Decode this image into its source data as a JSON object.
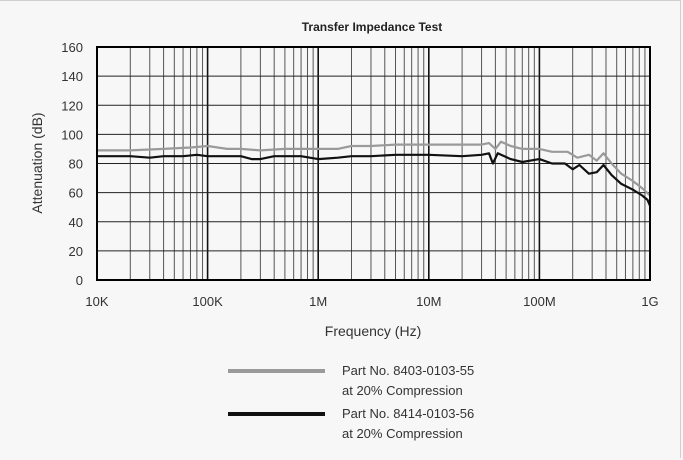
{
  "chart_data": {
    "type": "line",
    "title": "Transfer Impedance Test",
    "xlabel": "Frequency (Hz)",
    "ylabel": "Attenuation (dB)",
    "xscale": "log",
    "xlim": [
      10000,
      1000000000
    ],
    "ylim": [
      0,
      160
    ],
    "grid": true,
    "x_ticks": [
      {
        "value": 10000,
        "label": "10K"
      },
      {
        "value": 100000,
        "label": "100K"
      },
      {
        "value": 1000000,
        "label": "1M"
      },
      {
        "value": 10000000,
        "label": "10M"
      },
      {
        "value": 100000000,
        "label": "100M"
      },
      {
        "value": 1000000000,
        "label": "1G"
      }
    ],
    "y_ticks": [
      0,
      20,
      40,
      60,
      80,
      100,
      120,
      140,
      160
    ],
    "legend": {
      "position": "bottom"
    },
    "series": [
      {
        "name": "Part No. 8403-0103-55",
        "name_line2": "at 20% Compression",
        "color": "#9a9a9a",
        "points": [
          [
            10000,
            89
          ],
          [
            20000,
            89
          ],
          [
            40000,
            90
          ],
          [
            70000,
            91
          ],
          [
            100000,
            92
          ],
          [
            150000,
            90
          ],
          [
            200000,
            90
          ],
          [
            300000,
            89
          ],
          [
            500000,
            90
          ],
          [
            700000,
            90
          ],
          [
            1000000,
            90
          ],
          [
            1500000,
            90
          ],
          [
            2000000,
            92
          ],
          [
            3000000,
            92
          ],
          [
            5000000,
            93
          ],
          [
            10000000,
            93
          ],
          [
            20000000,
            93
          ],
          [
            30000000,
            93
          ],
          [
            35000000,
            94
          ],
          [
            40000000,
            90
          ],
          [
            45000000,
            95
          ],
          [
            55000000,
            92
          ],
          [
            70000000,
            90
          ],
          [
            100000000,
            90
          ],
          [
            130000000,
            88
          ],
          [
            180000000,
            88
          ],
          [
            220000000,
            84
          ],
          [
            280000000,
            86
          ],
          [
            330000000,
            82
          ],
          [
            380000000,
            87
          ],
          [
            450000000,
            80
          ],
          [
            550000000,
            73
          ],
          [
            700000000,
            68
          ],
          [
            850000000,
            63
          ],
          [
            1000000000,
            58
          ]
        ]
      },
      {
        "name": "Part No. 8414-0103-56",
        "name_line2": "at 20% Compression",
        "color": "#111111",
        "points": [
          [
            10000,
            85
          ],
          [
            20000,
            85
          ],
          [
            30000,
            84
          ],
          [
            40000,
            85
          ],
          [
            60000,
            85
          ],
          [
            80000,
            86
          ],
          [
            100000,
            85
          ],
          [
            200000,
            85
          ],
          [
            250000,
            83
          ],
          [
            300000,
            83
          ],
          [
            400000,
            85
          ],
          [
            700000,
            85
          ],
          [
            1000000,
            83
          ],
          [
            1500000,
            84
          ],
          [
            2000000,
            85
          ],
          [
            3000000,
            85
          ],
          [
            5000000,
            86
          ],
          [
            10000000,
            86
          ],
          [
            20000000,
            85
          ],
          [
            30000000,
            86
          ],
          [
            35000000,
            87
          ],
          [
            38000000,
            80
          ],
          [
            42000000,
            87
          ],
          [
            55000000,
            83
          ],
          [
            70000000,
            81
          ],
          [
            100000000,
            83
          ],
          [
            130000000,
            80
          ],
          [
            170000000,
            80
          ],
          [
            200000000,
            76
          ],
          [
            230000000,
            79
          ],
          [
            280000000,
            73
          ],
          [
            330000000,
            74
          ],
          [
            380000000,
            79
          ],
          [
            450000000,
            72
          ],
          [
            550000000,
            66
          ],
          [
            700000000,
            62
          ],
          [
            850000000,
            58
          ],
          [
            950000000,
            55
          ],
          [
            1000000000,
            51
          ]
        ]
      }
    ]
  }
}
